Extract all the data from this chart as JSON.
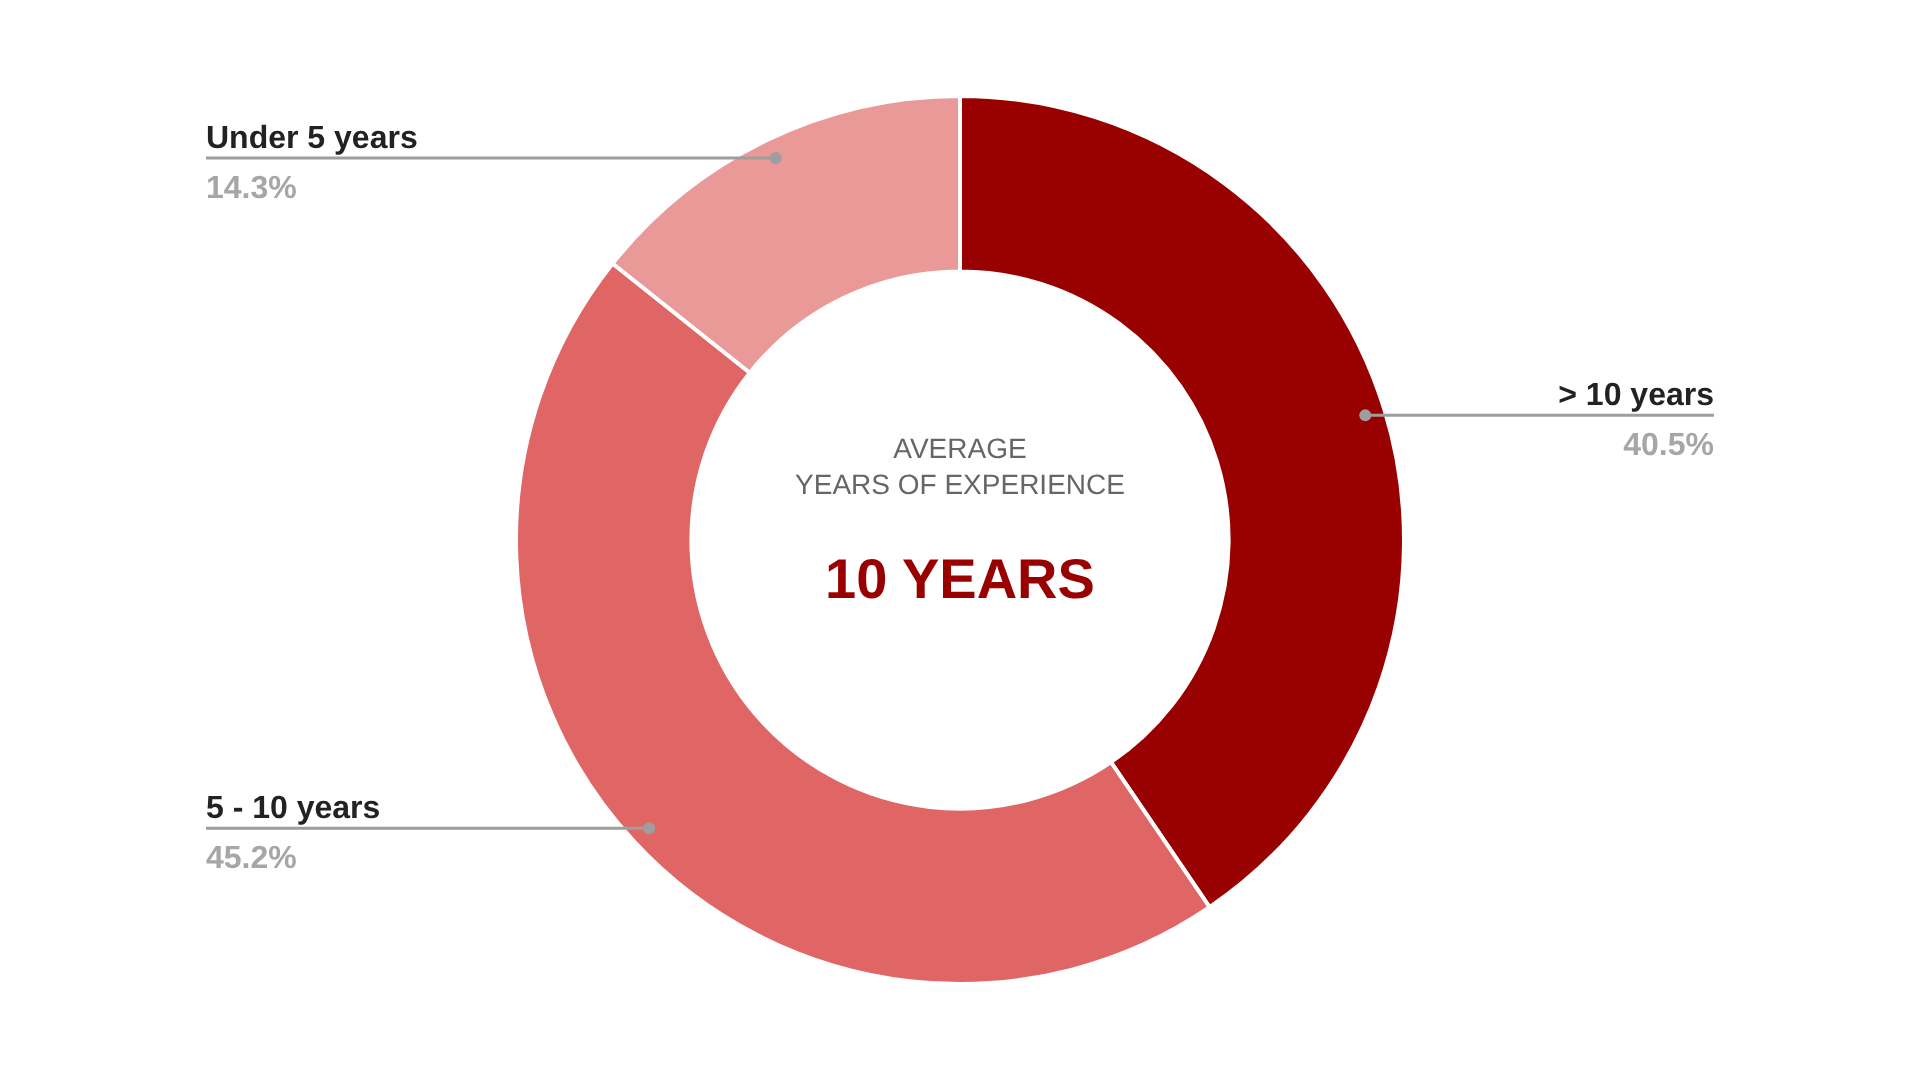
{
  "chart_data": {
    "type": "donut",
    "categories": [
      "> 10 years",
      "5 - 10 years",
      "Under 5 years"
    ],
    "values": [
      40.5,
      45.2,
      14.3
    ],
    "colors": [
      "#990000",
      "#e06666",
      "#ea9999"
    ],
    "value_labels": [
      "40.5%",
      "45.2%",
      "14.3%"
    ],
    "annotations": [
      "AVERAGE",
      "YEARS OF EXPERIENCE",
      "10 YEARS"
    ]
  }
}
